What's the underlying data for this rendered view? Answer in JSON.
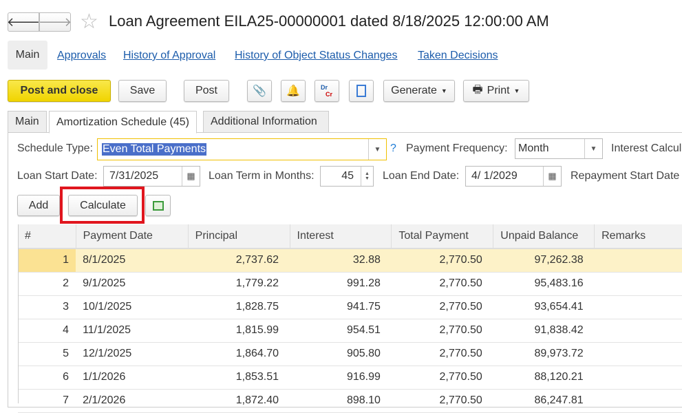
{
  "header": {
    "title": "Loan Agreement EILA25-00000001 dated 8/18/2025 12:00:00 AM"
  },
  "nav_links": {
    "main": "Main",
    "approvals": "Approvals",
    "history_approval": "History of Approval",
    "history_status": "History of Object Status Changes",
    "taken_decisions": "Taken Decisions"
  },
  "toolbar": {
    "post_close": "Post and close",
    "save": "Save",
    "post": "Post",
    "generate": "Generate",
    "print": "Print",
    "drcr_dr": "Dr",
    "drcr_cr": "Cr"
  },
  "tabs": [
    "Main",
    "Amortization Schedule (45)",
    "Additional Information"
  ],
  "form": {
    "schedule_type_label": "Schedule Type:",
    "schedule_type": "Even Total Payments",
    "help": "?",
    "payment_freq_label": "Payment Frequency:",
    "payment_freq": "Month",
    "interest_calc_label": "Interest Calcul",
    "loan_start_label": "Loan Start Date:",
    "loan_start": "7/31/2025",
    "loan_term_label": "Loan Term in Months:",
    "loan_term": "45",
    "loan_end_label": "Loan End Date:",
    "loan_end": "4/ 1/2029",
    "repayment_start_label": "Repayment Start Date"
  },
  "actions": {
    "add": "Add",
    "calculate": "Calculate"
  },
  "table": {
    "columns": [
      "#",
      "Payment Date",
      "Principal",
      "Interest",
      "Total Payment",
      "Unpaid Balance",
      "Remarks"
    ],
    "rows": [
      [
        "1",
        "8/1/2025",
        "2,737.62",
        "32.88",
        "2,770.50",
        "97,262.38",
        ""
      ],
      [
        "2",
        "9/1/2025",
        "1,779.22",
        "991.28",
        "2,770.50",
        "95,483.16",
        ""
      ],
      [
        "3",
        "10/1/2025",
        "1,828.75",
        "941.75",
        "2,770.50",
        "93,654.41",
        ""
      ],
      [
        "4",
        "11/1/2025",
        "1,815.99",
        "954.51",
        "2,770.50",
        "91,838.42",
        ""
      ],
      [
        "5",
        "12/1/2025",
        "1,864.70",
        "905.80",
        "2,770.50",
        "89,973.72",
        ""
      ],
      [
        "6",
        "1/1/2026",
        "1,853.51",
        "916.99",
        "2,770.50",
        "88,120.21",
        ""
      ],
      [
        "7",
        "2/1/2026",
        "1,872.40",
        "898.10",
        "2,770.50",
        "86,247.81",
        ""
      ]
    ]
  },
  "colors": {
    "accent_yellow": "#f5dc00",
    "highlight_red": "#e0161e",
    "link": "#1c5cab",
    "selected_row": "#fdf2c8"
  }
}
